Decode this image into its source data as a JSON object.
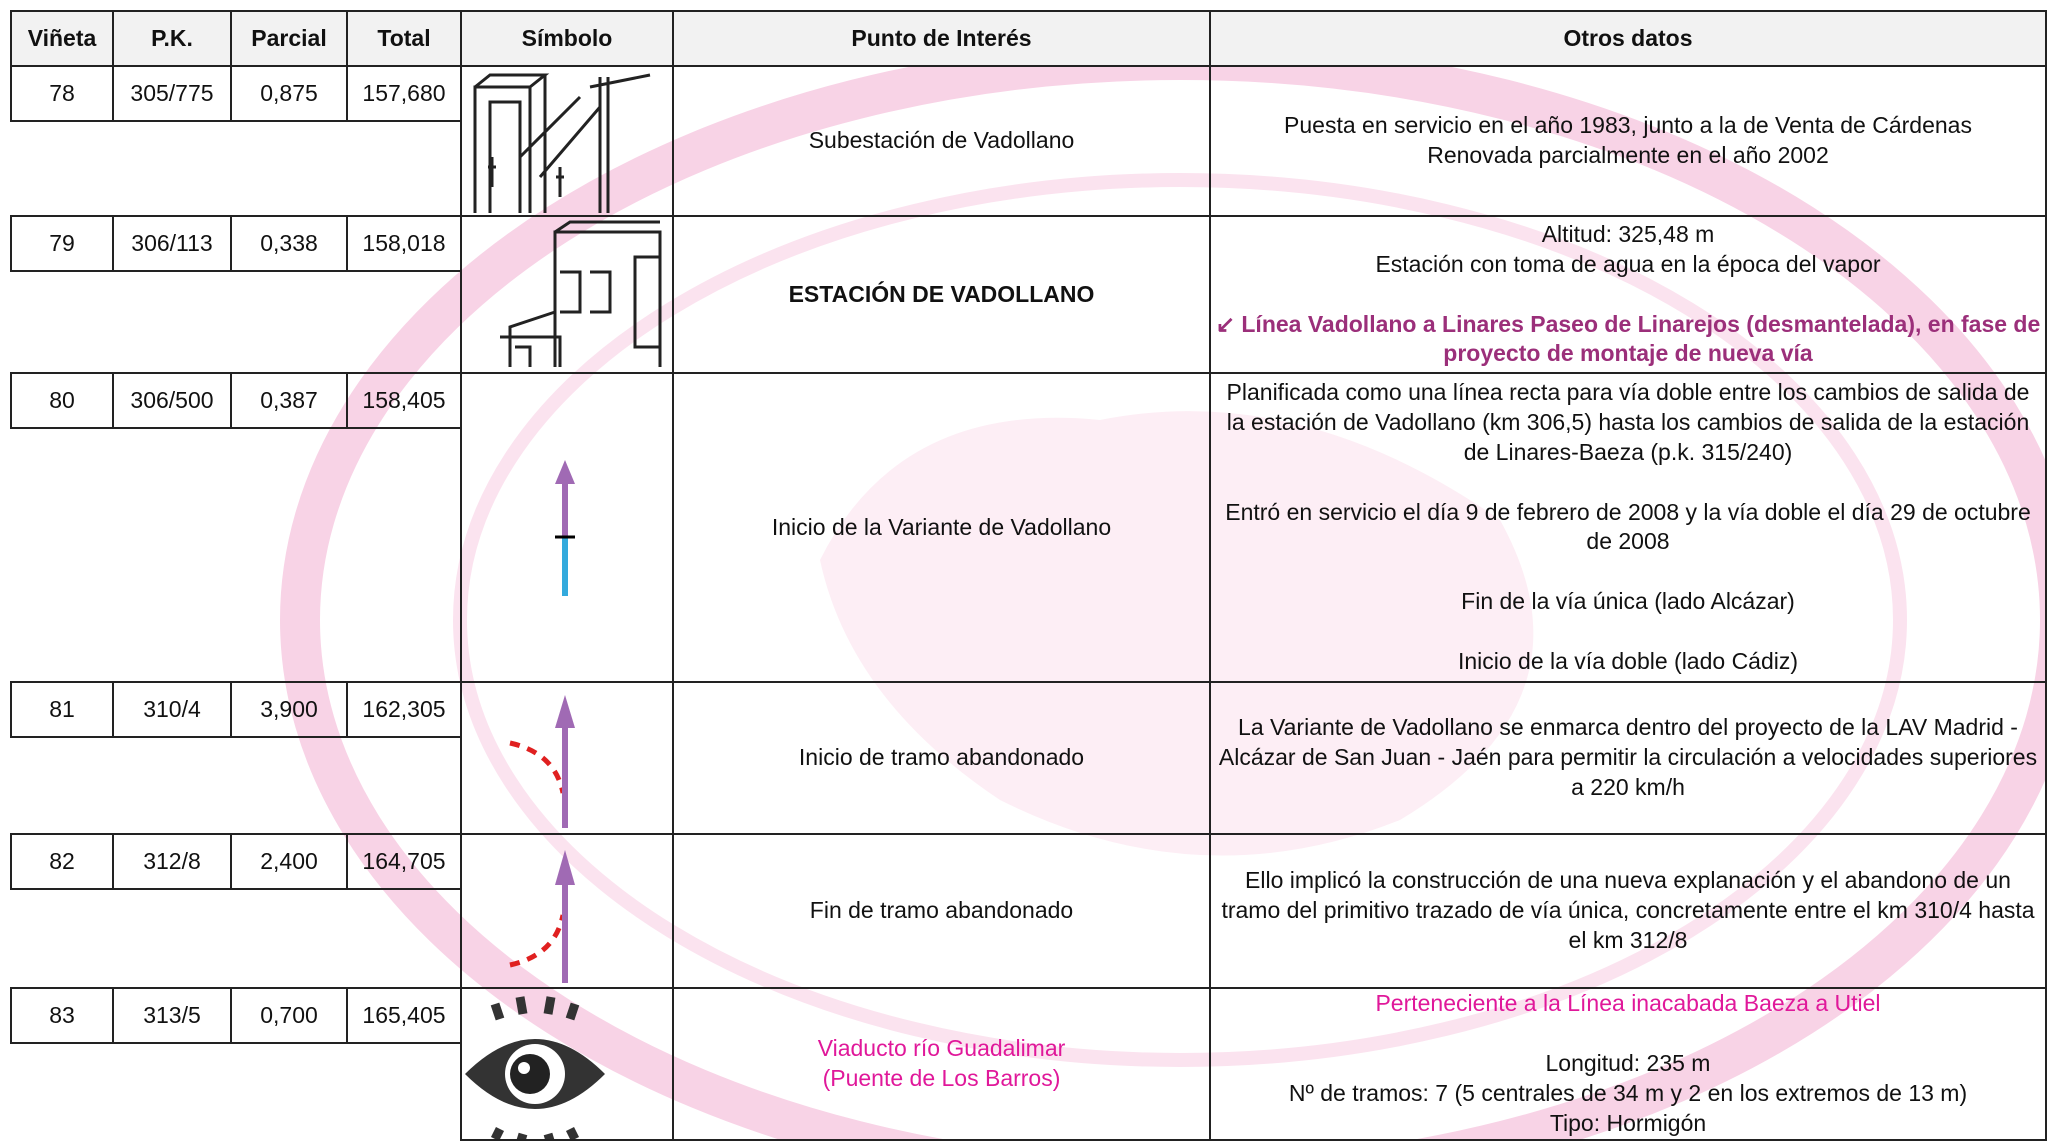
{
  "header": [
    "Viñeta",
    "P.K.",
    "Parcial",
    "Total",
    "Símbolo",
    "Punto de Interés",
    "Otros datos"
  ],
  "rows": [
    {
      "vineta": "78",
      "pk": "305/775",
      "parcial": "0,875",
      "total": "157,680",
      "punto": [
        "Subestación de Vadollano"
      ],
      "otros": [
        [
          "Puesta en servicio en el año 1983, junto a la de Venta de Cárdenas",
          "Renovada parcialmente en el año 2002"
        ]
      ]
    },
    {
      "vineta": "79",
      "pk": "306/113",
      "parcial": "0,338",
      "total": "158,018",
      "punto": [
        "ESTACIÓN DE VADOLLANO"
      ],
      "otros": [
        [
          "Altitud: 325,48 m",
          "Estación con toma de agua en la época del vapor"
        ],
        [
          "Línea Vadollano a Linares Paseo de Linarejos (desmantelada), en fase de proyecto de montaje de nueva vía"
        ]
      ]
    },
    {
      "vineta": "80",
      "pk": "306/500",
      "parcial": "0,387",
      "total": "158,405",
      "punto": [
        "Inicio de la Variante de Vadollano"
      ],
      "otros": [
        [
          "Planificada como una línea recta para vía doble entre los cambios de salida de la estación de Vadollano (km 306,5) hasta los cambios de salida de la estación de Linares-Baeza (p.k. 315/240)"
        ],
        [
          "Entró en servicio el día 9 de febrero de 2008 y la vía doble el día 29 de octubre de 2008"
        ],
        [
          "Fin de la vía única (lado Alcázar)"
        ],
        [
          "Inicio de la vía doble (lado Cádiz)"
        ]
      ]
    },
    {
      "vineta": "81",
      "pk": "310/4",
      "parcial": "3,900",
      "total": "162,305",
      "punto": [
        "Inicio de tramo abandonado"
      ],
      "otros": [
        [
          "La Variante de Vadollano se enmarca dentro del proyecto de la LAV Madrid - Alcázar de San Juan - Jaén para permitir la circulación a velocidades superiores a 220 km/h"
        ]
      ]
    },
    {
      "vineta": "82",
      "pk": "312/8",
      "parcial": "2,400",
      "total": "164,705",
      "punto": [
        "Fin de tramo abandonado"
      ],
      "otros": [
        [
          "Ello implicó la construcción de una nueva explanación y el abandono de un tramo del primitivo trazado de vía única, concretamente entre el km 310/4 hasta el km 312/8"
        ]
      ]
    },
    {
      "vineta": "83",
      "pk": "313/5",
      "parcial": "0,700",
      "total": "165,405",
      "punto": [
        "Viaducto río Guadalimar",
        "(Puente de Los Barros)"
      ],
      "otros": [
        [
          "Perteneciente a la Línea inacabada Baeza a Utiel"
        ],
        [
          "Longitud: 235 m",
          "Nº de tramos: 7 (5 centrales de 34 m y 2 en los extremos de 13 m)",
          "Tipo: Hormigón"
        ]
      ]
    }
  ]
}
